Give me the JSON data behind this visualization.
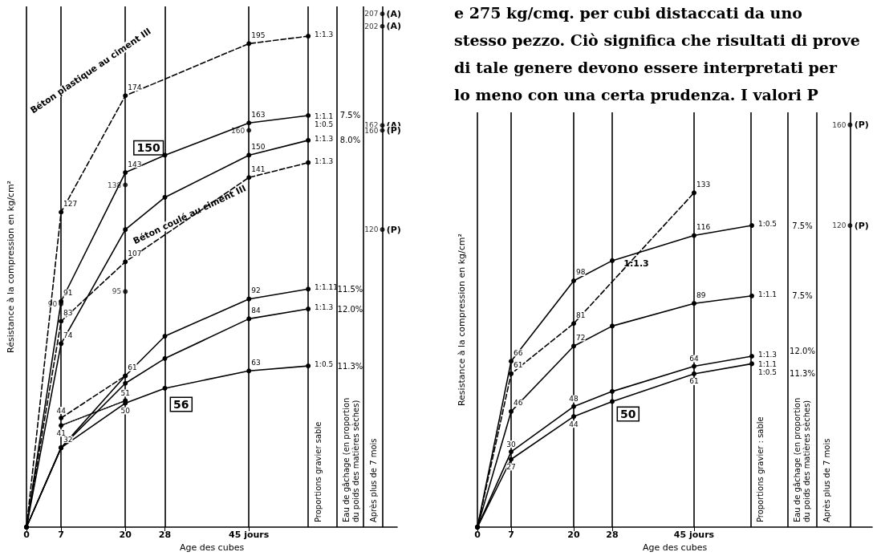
{
  "chart_data": [
    {
      "type": "line",
      "xlabel": "Age des cubes",
      "ylabel": "Résistance à la compression en kg/cm²",
      "xlim": [
        0,
        75
      ],
      "ylim": [
        0,
        210
      ],
      "xticks": [
        0,
        7,
        20,
        28,
        {
          "value": 45,
          "label": "45 jours"
        }
      ],
      "tick_labels": "x",
      "grid": "x",
      "marker": "circle",
      "series": [
        {
          "name": "1:1.3",
          "color": "#000000",
          "line_style": "dashed",
          "x": [
            0,
            7,
            20,
            45,
            57
          ],
          "values": [
            0,
            127,
            174,
            195,
            198
          ],
          "value_labels": [
            null,
            "127",
            "174",
            "195",
            null
          ]
        },
        {
          "name": "1:1.1\n1:0.5",
          "color": "#000000",
          "x": [
            0,
            7,
            20,
            28,
            45,
            57
          ],
          "values": [
            0,
            91,
            143,
            150,
            163,
            166
          ],
          "value_labels": [
            null,
            "91",
            "143",
            null,
            "163",
            null
          ]
        },
        {
          "name": "1:1.3",
          "color": "#000000",
          "x": [
            0,
            7,
            20,
            28,
            45,
            57
          ],
          "values": [
            0,
            74,
            120,
            133,
            150,
            156
          ],
          "value_labels": [
            null,
            "74",
            null,
            null,
            "150",
            null
          ]
        },
        {
          "name": "1:1.3",
          "color": "#000000",
          "line_style": "dashed",
          "x": [
            0,
            7,
            20,
            45,
            57
          ],
          "values": [
            0,
            83,
            107,
            141,
            147
          ],
          "value_labels": [
            null,
            "83",
            "107",
            "141",
            null
          ]
        },
        {
          "name": "1:1.11",
          "color": "#000000",
          "x": [
            0,
            7,
            20,
            28,
            45,
            57
          ],
          "values": [
            0,
            32,
            61,
            77,
            92,
            96
          ],
          "value_labels": [
            null,
            null,
            "61",
            null,
            "92",
            null
          ]
        },
        {
          "name": "1:1.3",
          "color": "#000000",
          "x": [
            0,
            7,
            20,
            28,
            45,
            57
          ],
          "values": [
            0,
            32,
            58,
            68,
            84,
            88
          ],
          "value_labels": [
            null,
            null,
            null,
            null,
            "84",
            null
          ]
        },
        {
          "name": "1:0.5",
          "color": "#000000",
          "x": [
            0,
            7,
            20,
            28,
            45,
            57
          ],
          "values": [
            0,
            32,
            50,
            56,
            63,
            65
          ],
          "value_labels": [
            null,
            "32",
            "50",
            null,
            "63",
            null
          ]
        },
        {
          "color": "#000000",
          "line_style": "dashed",
          "x": [
            7,
            20
          ],
          "values": [
            44,
            61
          ],
          "value_labels": [
            "44",
            null
          ]
        },
        {
          "color": "#000000",
          "line_style": "dotted",
          "x": [
            7,
            20
          ],
          "values": [
            41,
            51
          ],
          "value_labels": [
            "41",
            "51"
          ]
        },
        {
          "type": "scatter",
          "color": "#000000",
          "x": [
            7,
            20,
            20,
            45
          ],
          "values": [
            90,
            138,
            95,
            160
          ],
          "value_labels": [
            "90",
            "138",
            "95",
            "160"
          ]
        },
        {
          "type": "scatter",
          "color": "#000000",
          "x": [
            72,
            72,
            72,
            72,
            72
          ],
          "values": [
            207,
            202,
            162,
            160,
            120
          ],
          "value_labels": [
            "207",
            "202",
            "162",
            "160",
            "120"
          ]
        }
      ],
      "ref_lines": [
        {
          "axis": "x",
          "value": 57,
          "label": "Proportions gravier sable"
        },
        {
          "axis": "x",
          "value": 62.8,
          "label": "Eau de gâchage (en proportion\ndu poids des matières sèches)"
        },
        {
          "axis": "x",
          "value": 68.2,
          "label": "Après plus de 7 mois"
        },
        {
          "axis": "x",
          "value": 72
        }
      ],
      "annotations": [
        "Béton plastique au ciment III",
        "Béton coulé au ciment III",
        {
          "text": "150",
          "x": 24.7,
          "y": 153
        },
        {
          "text": "56",
          "x": 31.3,
          "y": 49.5
        },
        "7.5%",
        "8.0%",
        "11.5%",
        "12.0%",
        "11.3%",
        {
          "text": "(A)",
          "x": 74.3,
          "y": 207
        },
        {
          "text": "(A)",
          "x": 74.3,
          "y": 202
        },
        {
          "text": "(A)",
          "x": 74.3,
          "y": 162
        },
        {
          "text": "(P)",
          "x": 74.3,
          "y": 160
        },
        {
          "text": "(P)",
          "x": 74.3,
          "y": 120
        }
      ]
    },
    {
      "type": "line",
      "xlabel": "Age des cubes",
      "ylabel": "Resistance à la compression en kg/cm²",
      "xlim": [
        0,
        82
      ],
      "ylim": [
        0,
        165
      ],
      "xticks": [
        0,
        7,
        20,
        28,
        {
          "value": 45,
          "label": "45 jours"
        }
      ],
      "tick_labels": "x",
      "grid": "x",
      "marker": "circle",
      "series": [
        {
          "name": "1:0.5",
          "color": "#000000",
          "x": [
            0,
            7,
            20,
            28,
            45,
            57
          ],
          "values": [
            0,
            66,
            98,
            106,
            116,
            120
          ],
          "value_labels": [
            null,
            "66",
            "98",
            null,
            "116",
            null
          ]
        },
        {
          "name": "1:1.1",
          "color": "#000000",
          "x": [
            0,
            7,
            20,
            28,
            45,
            57
          ],
          "values": [
            0,
            46,
            72,
            80,
            89,
            92
          ],
          "value_labels": [
            null,
            "46",
            "72",
            null,
            "89",
            null
          ]
        },
        {
          "name": "1:1.3",
          "color": "#000000",
          "x": [
            0,
            7,
            20,
            28,
            45,
            57
          ],
          "values": [
            0,
            30,
            48,
            54,
            64,
            68
          ],
          "value_labels": [
            null,
            "30",
            "48",
            null,
            "64",
            null
          ]
        },
        {
          "name": "1:1.1\n1:0.5",
          "color": "#000000",
          "x": [
            0,
            7,
            20,
            28,
            45,
            57
          ],
          "values": [
            0,
            27,
            44,
            50,
            61,
            65
          ],
          "value_labels": [
            null,
            "27",
            "44",
            null,
            "61",
            null
          ]
        },
        {
          "color": "#000000",
          "line_style": "dashed",
          "x": [
            0,
            7,
            20,
            45
          ],
          "values": [
            0,
            61,
            81,
            133
          ],
          "value_labels": [
            null,
            "61",
            "81",
            "133"
          ]
        },
        {
          "type": "scatter",
          "color": "#000000",
          "x": [
            77.4,
            77.4
          ],
          "values": [
            160,
            120
          ],
          "value_labels": [
            "160",
            "120"
          ]
        }
      ],
      "ref_lines": [
        {
          "axis": "x",
          "value": 56.8,
          "label": "Proportions gravier : sable"
        },
        {
          "axis": "x",
          "value": 64.4,
          "label": "Eau de gâchage (en proportion\ndu poids des matières sèches)"
        },
        {
          "axis": "x",
          "value": 70.5,
          "label": "Après plus de 7 mois"
        },
        {
          "axis": "x",
          "value": 77.4
        }
      ],
      "annotations": [
        "e 275 kg/cmq. per cubi distaccati da uno",
        "stesso pezzo. Ciò significa che risultati di prove",
        "di tale genere devono essere interpretati per",
        "lo meno con una certa prudenza. I valori P",
        {
          "text": "1:1.3",
          "x": 33,
          "y": 105
        },
        {
          "text": "50",
          "x": 31.3,
          "y": 45
        },
        "7.5%",
        "7.5%",
        "12.0%",
        "11.3%",
        {
          "text": "(P)",
          "x": 79.8,
          "y": 160
        },
        {
          "text": "(P)",
          "x": 79.8,
          "y": 120
        }
      ]
    }
  ]
}
